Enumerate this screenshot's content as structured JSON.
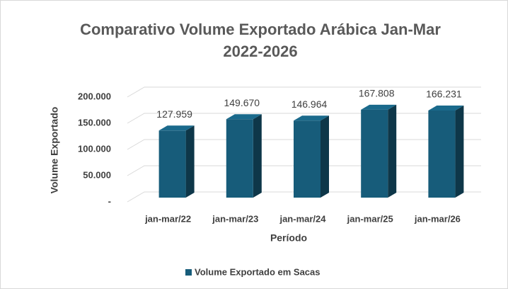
{
  "chart_data": {
    "type": "bar3d",
    "title": "Comparativo Volume Exportado Arábica Jan-Mar",
    "subtitle": "2022-2026",
    "x_label": "Período",
    "y_label": "Volume Exportado",
    "categories": [
      "jan-mar/22",
      "jan-mar/23",
      "jan-mar/24",
      "jan-mar/25",
      "jan-mar/26"
    ],
    "series": [
      {
        "name": "Volume Exportado em Sacas",
        "color": "#175c7a",
        "values": [
          127959,
          149670,
          146964,
          167808,
          166231
        ],
        "value_labels": [
          "127.959",
          "149.670",
          "146.964",
          "167.808",
          "166.231"
        ]
      }
    ],
    "ylim": [
      0,
      200000
    ],
    "yticks": [
      {
        "value": 0,
        "label": "-"
      },
      {
        "value": 50000,
        "label": "50.000"
      },
      {
        "value": 100000,
        "label": "100.000"
      },
      {
        "value": 150000,
        "label": "150.000"
      },
      {
        "value": 200000,
        "label": "200.000"
      }
    ],
    "grid": true,
    "legend": "bottom"
  }
}
